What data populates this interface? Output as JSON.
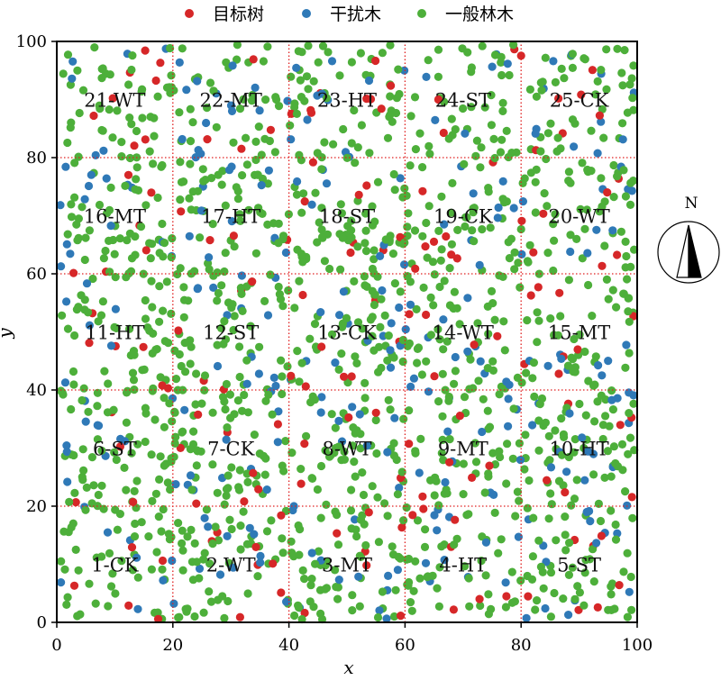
{
  "chart_data": {
    "type": "scatter",
    "xlabel": "x",
    "ylabel": "y",
    "xlim": [
      0,
      100
    ],
    "ylim": [
      0,
      100
    ],
    "xticks": [
      0,
      20,
      40,
      60,
      80,
      100
    ],
    "yticks": [
      0,
      20,
      40,
      60,
      80,
      100
    ],
    "xtick_labels": [
      "0",
      "20",
      "40",
      "60",
      "80",
      "100"
    ],
    "ytick_labels": [
      "0",
      "20",
      "40",
      "60",
      "80",
      "100"
    ],
    "grid": "dotted red lines every 20 units",
    "legend_position": "top",
    "legend": [
      "目标树",
      "干扰木",
      "一般林木"
    ],
    "series": [
      {
        "name": "目标树",
        "color": "#d62728",
        "count_estimate": 160
      },
      {
        "name": "干扰木",
        "color": "#2f79b7",
        "count_estimate": 280
      },
      {
        "name": "一般林木",
        "color": "#4daf3a",
        "count_estimate": 1300
      }
    ],
    "plots": [
      {
        "label": "1-CK",
        "x": 10,
        "y": 10
      },
      {
        "label": "2-WT",
        "x": 30,
        "y": 10
      },
      {
        "label": "3-MT",
        "x": 50,
        "y": 10
      },
      {
        "label": "4-HT",
        "x": 70,
        "y": 10
      },
      {
        "label": "5-ST",
        "x": 90,
        "y": 10
      },
      {
        "label": "6-ST",
        "x": 10,
        "y": 30
      },
      {
        "label": "7-CK",
        "x": 30,
        "y": 30
      },
      {
        "label": "8-WT",
        "x": 50,
        "y": 30
      },
      {
        "label": "9-MT",
        "x": 70,
        "y": 30
      },
      {
        "label": "10-HT",
        "x": 90,
        "y": 30
      },
      {
        "label": "11-HT",
        "x": 10,
        "y": 50
      },
      {
        "label": "12-ST",
        "x": 30,
        "y": 50
      },
      {
        "label": "13-CK",
        "x": 50,
        "y": 50
      },
      {
        "label": "14-WT",
        "x": 70,
        "y": 50
      },
      {
        "label": "15-MT",
        "x": 90,
        "y": 50
      },
      {
        "label": "16-MT",
        "x": 10,
        "y": 70
      },
      {
        "label": "17-HT",
        "x": 30,
        "y": 70
      },
      {
        "label": "18-ST",
        "x": 50,
        "y": 70
      },
      {
        "label": "19-CK",
        "x": 70,
        "y": 70
      },
      {
        "label": "20-WT",
        "x": 90,
        "y": 70
      },
      {
        "label": "21-WT",
        "x": 10,
        "y": 90
      },
      {
        "label": "22-MT",
        "x": 30,
        "y": 90
      },
      {
        "label": "23-HT",
        "x": 50,
        "y": 90
      },
      {
        "label": "24-ST",
        "x": 70,
        "y": 90
      },
      {
        "label": "25-CK",
        "x": 90,
        "y": 90
      }
    ],
    "north_arrow_label": "N"
  }
}
